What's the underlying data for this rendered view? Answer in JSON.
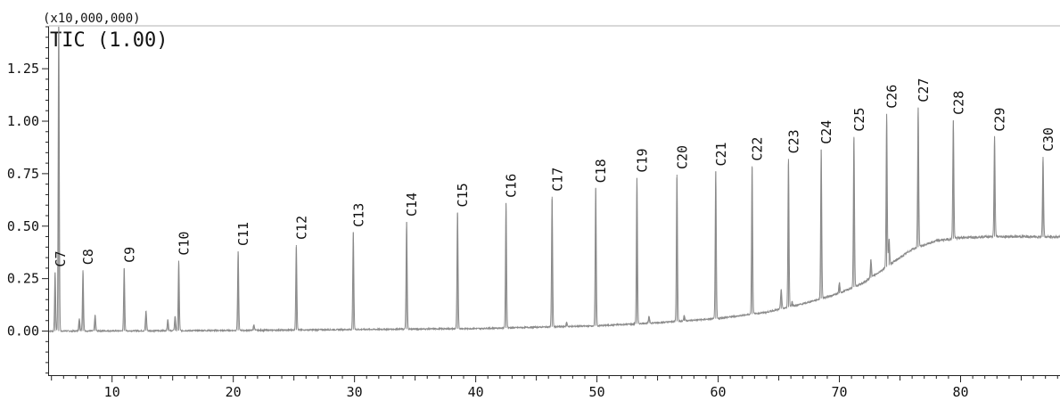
{
  "chart_data": {
    "type": "line",
    "title": "TIC (1.00)",
    "y_scale_label": "(x10,000,000)",
    "xlim": [
      4.8,
      88.2
    ],
    "ylim": [
      -0.21,
      1.45
    ],
    "x_ticks": [
      10,
      20,
      30,
      40,
      50,
      60,
      70,
      80
    ],
    "y_ticks": [
      0.0,
      0.25,
      0.5,
      0.75,
      1.0,
      1.25
    ],
    "y_tick_labels": [
      "0.00",
      "0.25",
      "0.50",
      "0.75",
      "1.00",
      "1.25"
    ],
    "colors": {
      "trace": "#8a8a8a",
      "axis": "#222222",
      "text": "#111111"
    },
    "baseline": [
      [
        4.8,
        0.0
      ],
      [
        20.0,
        0.003
      ],
      [
        40.0,
        0.012
      ],
      [
        50.0,
        0.025
      ],
      [
        55.0,
        0.04
      ],
      [
        60.0,
        0.06
      ],
      [
        64.0,
        0.09
      ],
      [
        67.0,
        0.13
      ],
      [
        70.0,
        0.18
      ],
      [
        72.0,
        0.23
      ],
      [
        74.0,
        0.31
      ],
      [
        76.0,
        0.39
      ],
      [
        78.0,
        0.43
      ],
      [
        80.0,
        0.445
      ],
      [
        82.0,
        0.45
      ],
      [
        85.0,
        0.45
      ],
      [
        88.2,
        0.448
      ]
    ],
    "peaks": [
      {
        "label": "",
        "x": 5.6,
        "y": 1.5
      },
      {
        "label": "C7",
        "x": 5.3,
        "y": 0.28
      },
      {
        "label": "C8",
        "x": 7.6,
        "y": 0.29
      },
      {
        "label": "C9",
        "x": 11.0,
        "y": 0.3
      },
      {
        "label": "C10",
        "x": 15.5,
        "y": 0.335
      },
      {
        "label": "C11",
        "x": 20.4,
        "y": 0.38
      },
      {
        "label": "C12",
        "x": 25.2,
        "y": 0.41
      },
      {
        "label": "C13",
        "x": 29.9,
        "y": 0.47
      },
      {
        "label": "C14",
        "x": 34.3,
        "y": 0.52
      },
      {
        "label": "C15",
        "x": 38.5,
        "y": 0.565
      },
      {
        "label": "C16",
        "x": 42.5,
        "y": 0.61
      },
      {
        "label": "C17",
        "x": 46.3,
        "y": 0.64
      },
      {
        "label": "C18",
        "x": 49.9,
        "y": 0.68
      },
      {
        "label": "C19",
        "x": 53.3,
        "y": 0.73
      },
      {
        "label": "C20",
        "x": 56.6,
        "y": 0.745
      },
      {
        "label": "C21",
        "x": 59.8,
        "y": 0.76
      },
      {
        "label": "C22",
        "x": 62.8,
        "y": 0.785
      },
      {
        "label": "C23",
        "x": 65.8,
        "y": 0.82
      },
      {
        "label": "C24",
        "x": 68.5,
        "y": 0.865
      },
      {
        "label": "C25",
        "x": 71.2,
        "y": 0.925
      },
      {
        "label": "C26",
        "x": 73.9,
        "y": 1.035
      },
      {
        "label": "C27",
        "x": 76.5,
        "y": 1.065
      },
      {
        "label": "C28",
        "x": 79.4,
        "y": 1.005
      },
      {
        "label": "C29",
        "x": 82.8,
        "y": 0.925
      },
      {
        "label": "C30",
        "x": 86.8,
        "y": 0.83
      }
    ],
    "minor_peaks": [
      {
        "x": 7.3,
        "y": 0.06
      },
      {
        "x": 8.6,
        "y": 0.075
      },
      {
        "x": 12.8,
        "y": 0.095
      },
      {
        "x": 14.6,
        "y": 0.055
      },
      {
        "x": 15.2,
        "y": 0.07
      },
      {
        "x": 21.7,
        "y": 0.03
      },
      {
        "x": 47.5,
        "y": 0.04
      },
      {
        "x": 54.3,
        "y": 0.07
      },
      {
        "x": 57.2,
        "y": 0.075
      },
      {
        "x": 65.2,
        "y": 0.2
      },
      {
        "x": 66.1,
        "y": 0.14
      },
      {
        "x": 70.0,
        "y": 0.23
      },
      {
        "x": 72.6,
        "y": 0.34
      },
      {
        "x": 74.1,
        "y": 0.44
      }
    ]
  }
}
